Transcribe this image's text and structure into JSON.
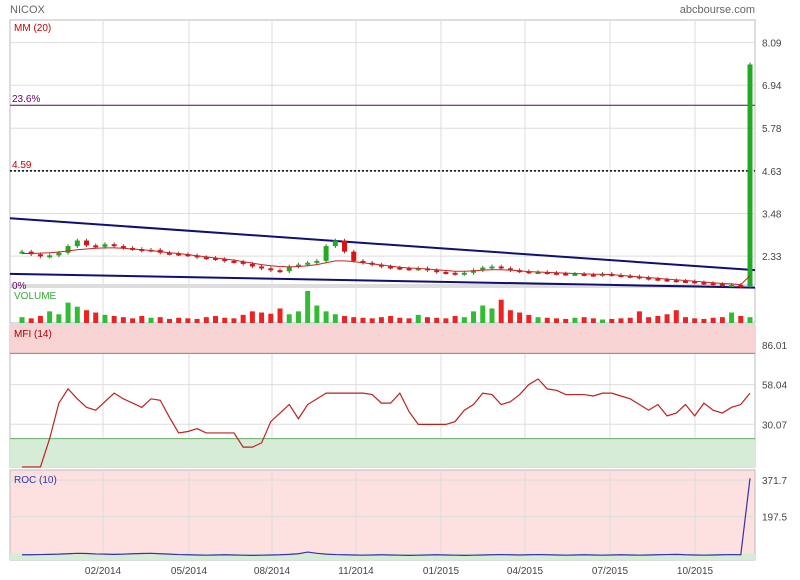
{
  "header": {
    "ticker": "NICOX",
    "source": "abcbourse.com"
  },
  "x_axis": {
    "labels": [
      "02/2014",
      "05/2014",
      "08/2014",
      "11/2014",
      "01/2015",
      "04/2015",
      "07/2015",
      "10/2015"
    ]
  },
  "colors": {
    "up": "#22aa22",
    "down": "#dd1111",
    "trend": "#101070",
    "mm": "#cc2222",
    "fib": "#660066",
    "mfi": "#bb2222",
    "roc": "#3333aa",
    "overbought_fill": "#f7d3d3",
    "oversold_fill": "#d6ecd6",
    "grid": "#dddddd",
    "vol_up": "#33bb33",
    "vol_down": "#ee2222"
  },
  "chart_data": [
    {
      "type": "candlestick",
      "panel": "price",
      "indicator_label": "MM (20)",
      "y_ticks": [
        "8.09",
        "6.94",
        "5.78",
        "4.63",
        "3.48",
        "2.33"
      ],
      "ylim": [
        1.55,
        8.7
      ],
      "fib_levels": [
        {
          "label": "23.6%",
          "value": 6.4
        },
        {
          "label": "4.59",
          "value": 4.63
        },
        {
          "label": "0%",
          "value": 1.4
        }
      ],
      "trend_lines": [
        {
          "from": [
            0,
            3.35
          ],
          "to": [
            1.0,
            1.95
          ]
        },
        {
          "from": [
            0,
            1.85
          ],
          "to": [
            1.0,
            1.48
          ]
        }
      ],
      "series": [
        {
          "name": "price",
          "values": [
            2.45,
            2.38,
            2.32,
            2.35,
            2.42,
            2.6,
            2.75,
            2.62,
            2.58,
            2.65,
            2.6,
            2.55,
            2.52,
            2.48,
            2.5,
            2.42,
            2.4,
            2.38,
            2.35,
            2.3,
            2.28,
            2.25,
            2.2,
            2.18,
            2.12,
            2.05,
            2.0,
            1.95,
            1.92,
            2.05,
            2.1,
            2.15,
            2.2,
            2.6,
            2.75,
            2.45,
            2.2,
            2.15,
            2.1,
            2.05,
            2.02,
            2.0,
            1.98,
            2.0,
            1.95,
            1.9,
            1.88,
            1.85,
            1.88,
            1.95,
            2.02,
            2.05,
            2.0,
            1.95,
            1.92,
            1.9,
            1.9,
            1.88,
            1.86,
            1.85,
            1.85,
            1.83,
            1.82,
            1.85,
            1.82,
            1.8,
            1.78,
            1.75,
            1.72,
            1.7,
            1.68,
            1.66,
            1.65,
            1.62,
            1.6,
            1.58,
            1.55,
            1.55,
            1.52,
            7.5
          ]
        },
        {
          "name": "MM (20)",
          "values": [
            2.4,
            2.4,
            2.41,
            2.42,
            2.44,
            2.47,
            2.5,
            2.52,
            2.54,
            2.55,
            2.55,
            2.54,
            2.52,
            2.5,
            2.48,
            2.45,
            2.42,
            2.4,
            2.37,
            2.34,
            2.31,
            2.28,
            2.25,
            2.22,
            2.18,
            2.14,
            2.1,
            2.07,
            2.05,
            2.04,
            2.05,
            2.07,
            2.1,
            2.15,
            2.2,
            2.2,
            2.18,
            2.15,
            2.12,
            2.09,
            2.06,
            2.03,
            2.01,
            2.0,
            1.98,
            1.96,
            1.94,
            1.92,
            1.92,
            1.93,
            1.95,
            1.96,
            1.96,
            1.95,
            1.93,
            1.91,
            1.9,
            1.89,
            1.88,
            1.87,
            1.86,
            1.85,
            1.84,
            1.84,
            1.83,
            1.81,
            1.79,
            1.77,
            1.75,
            1.73,
            1.71,
            1.69,
            1.67,
            1.65,
            1.63,
            1.61,
            1.59,
            1.58,
            1.56,
            1.8
          ]
        }
      ]
    },
    {
      "type": "bar",
      "panel": "volume",
      "indicator_label": "VOLUME",
      "series": [
        {
          "name": "volume",
          "values": [
            10,
            8,
            12,
            20,
            15,
            35,
            28,
            22,
            18,
            14,
            12,
            10,
            8,
            12,
            9,
            10,
            7,
            9,
            8,
            7,
            10,
            12,
            9,
            8,
            14,
            20,
            18,
            16,
            25,
            15,
            20,
            55,
            30,
            20,
            15,
            12,
            10,
            9,
            8,
            10,
            12,
            9,
            8,
            14,
            10,
            9,
            8,
            12,
            10,
            20,
            30,
            25,
            40,
            22,
            18,
            14,
            10,
            9,
            8,
            7,
            9,
            10,
            8,
            6,
            7,
            8,
            9,
            20,
            10,
            12,
            15,
            22,
            10,
            8,
            7,
            9,
            10,
            18,
            12,
            10
          ]
        }
      ]
    },
    {
      "type": "line",
      "panel": "mfi",
      "indicator_label": "MFI (14)",
      "y_ticks": [
        "86.01",
        "58.04",
        "30.07"
      ],
      "ylim": [
        0,
        100
      ],
      "overbought": 80,
      "oversold": 20,
      "series": [
        {
          "name": "MFI (14)",
          "values": [
            0,
            0,
            0,
            20,
            45,
            55,
            48,
            42,
            40,
            46,
            52,
            48,
            45,
            42,
            48,
            47,
            35,
            24,
            25,
            27,
            24,
            24,
            24,
            24,
            14,
            14,
            17,
            32,
            38,
            44,
            34,
            44,
            48,
            52,
            52,
            52,
            52,
            52,
            51,
            45,
            45,
            52,
            39,
            30,
            30,
            30,
            30,
            32,
            40,
            44,
            52,
            51,
            44,
            46,
            51,
            58,
            62,
            55,
            54,
            51,
            51,
            51,
            50,
            52,
            52,
            50,
            48,
            44,
            40,
            44,
            36,
            38,
            44,
            36,
            45,
            40,
            38,
            42,
            44,
            52
          ]
        }
      ]
    },
    {
      "type": "line",
      "panel": "roc",
      "indicator_label": "ROC (10)",
      "y_ticks": [
        "371.7",
        "197.5"
      ],
      "ylim": [
        -10,
        420
      ],
      "series": [
        {
          "name": "ROC (10)",
          "values": [
            15,
            15,
            16,
            17,
            18,
            20,
            22,
            21,
            19,
            18,
            17,
            18,
            20,
            21,
            22,
            20,
            18,
            16,
            15,
            14,
            13,
            14,
            15,
            14,
            13,
            12,
            13,
            14,
            15,
            17,
            20,
            28,
            22,
            18,
            16,
            15,
            14,
            13,
            14,
            15,
            14,
            13,
            12,
            13,
            14,
            15,
            14,
            13,
            12,
            13,
            14,
            15,
            16,
            15,
            14,
            15,
            16,
            15,
            14,
            13,
            14,
            15,
            14,
            13,
            14,
            15,
            14,
            13,
            14,
            15,
            16,
            17,
            15,
            14,
            13,
            14,
            15,
            16,
            15,
            380
          ]
        }
      ]
    }
  ]
}
